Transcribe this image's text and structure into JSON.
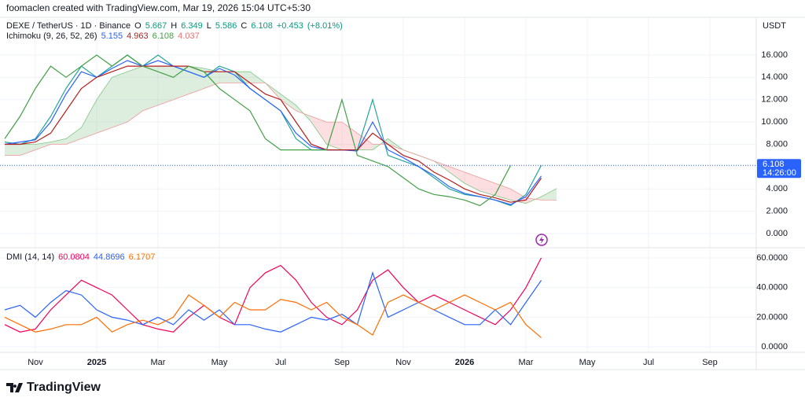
{
  "header": {
    "credit": "foomaclen created with TradingView.com, Mar 19, 2026 15:04 UTC+5:30",
    "currency": "USDT"
  },
  "footer": {
    "brand": "TradingView"
  },
  "chart_data": [
    {
      "type": "line",
      "symbol": "DEXE / TetherUS · 1D · Binance",
      "indicator": "Ichimoku (9, 26, 52, 26)",
      "ohlc_labels": [
        "O",
        "H",
        "L",
        "C"
      ],
      "ohlc": [
        5.667,
        6.349,
        5.586,
        6.108
      ],
      "change": [
        {
          "value": 0.453,
          "label": "+0.453"
        },
        {
          "value": 8.01,
          "label": "(+8.01%)"
        }
      ],
      "countdown": "14:26:00",
      "categories": [
        null,
        null,
        "Nov",
        null,
        null,
        null,
        "2025",
        null,
        null,
        null,
        "Mar",
        null,
        null,
        null,
        "May",
        null,
        null,
        null,
        "Jul",
        null,
        null,
        null,
        "Sep",
        null,
        null,
        null,
        "Nov",
        null,
        null,
        null,
        "2026",
        null,
        null,
        null,
        "Mar",
        null,
        null,
        null,
        "May",
        null,
        null,
        null,
        "Jul",
        null,
        null,
        null,
        "Sep",
        null,
        null,
        null
      ],
      "ylim": [
        -1.06,
        19.38
      ],
      "yticks": [
        {
          "value": 0,
          "label": "0.000"
        },
        {
          "value": 2,
          "label": "2.000"
        },
        {
          "value": 4,
          "label": "4.000"
        },
        {
          "value": 6,
          "label": "6.000"
        },
        {
          "value": 8,
          "label": "8.000"
        },
        {
          "value": 10,
          "label": "10.000"
        },
        {
          "value": 12,
          "label": "12.000"
        },
        {
          "value": 14,
          "label": "14.000"
        },
        {
          "value": 16,
          "label": "16.000"
        }
      ],
      "series": [
        {
          "color": "#26a69a",
          "values": [
            8.2,
            8,
            8.5,
            10.5,
            13,
            15,
            14,
            15,
            16,
            15,
            16,
            15,
            14.5,
            14,
            15,
            14.5,
            13,
            12,
            11,
            8.5,
            7.5,
            7.5,
            7.5,
            7.5,
            12,
            7,
            6.5,
            6,
            5,
            4,
            3.5,
            3.3,
            3,
            2.5,
            3.5,
            6.108,
            null,
            null,
            null,
            null,
            null,
            null,
            null,
            null,
            null,
            null,
            null,
            null,
            null,
            null
          ]
        },
        {
          "color": "#2962ff",
          "values": [
            8,
            8.2,
            8.4,
            10,
            12.5,
            14.5,
            14,
            14.8,
            15.5,
            15,
            15.5,
            15,
            14.5,
            14,
            14.8,
            14.2,
            13,
            12,
            11,
            9,
            7.8,
            7.5,
            7.5,
            7.4,
            10,
            7.5,
            6.8,
            6,
            5.2,
            4.2,
            3.6,
            3.3,
            3,
            2.6,
            3.3,
            5.155,
            null,
            null,
            null,
            null,
            null,
            null,
            null,
            null,
            null,
            null,
            null,
            null,
            null,
            null
          ]
        },
        {
          "color": "#b71c1c",
          "values": [
            8,
            8,
            8.2,
            9,
            11,
            13,
            14,
            14.5,
            15,
            15,
            15,
            15,
            15,
            14.5,
            14.5,
            14.5,
            13.5,
            12.5,
            12,
            10,
            8,
            7.5,
            7.5,
            7.5,
            9,
            8,
            7,
            6.5,
            5.5,
            4.8,
            4,
            3.5,
            3.2,
            2.8,
            3,
            4.963,
            null,
            null,
            null,
            null,
            null,
            null,
            null,
            null,
            null,
            null,
            null,
            null,
            null,
            null
          ]
        },
        {
          "color": "#43a047",
          "values": [
            8.5,
            10.5,
            13,
            15,
            14,
            15,
            16,
            15,
            16,
            15,
            14.5,
            14,
            15,
            14.5,
            13,
            12,
            11,
            8.5,
            7.5,
            7.5,
            7.5,
            7.5,
            12,
            7,
            6.5,
            6,
            5,
            4,
            3.5,
            3.3,
            3,
            2.5,
            3.5,
            6.108,
            null,
            null,
            null,
            null,
            null,
            null,
            null,
            null,
            null,
            null,
            null,
            null,
            null,
            null,
            null,
            null
          ]
        }
      ],
      "cloud": {
        "up_color": "rgba(67,160,71,0.18)",
        "down_color": "rgba(242,54,69,0.16)",
        "series": [
          {
            "color": "#81c784",
            "values": [
              8,
              8,
              8,
              8.2,
              8.5,
              9.5,
              12,
              14,
              14.5,
              15,
              15,
              15,
              15,
              14.8,
              14.5,
              14.5,
              14.5,
              13.5,
              12.5,
              11.5,
              10,
              8,
              7.5,
              7.5,
              7.5,
              8.5,
              7.5,
              7,
              6.5,
              5.5,
              4.5,
              3.8,
              3.4,
              3,
              2.7,
              3.3,
              4.037,
              null,
              null,
              null,
              null,
              null,
              null,
              null,
              null,
              null,
              null,
              null,
              null,
              null
            ]
          },
          {
            "color": "#ef9a9a",
            "values": [
              7,
              7,
              7.5,
              8,
              8,
              8.5,
              9,
              9.5,
              10,
              11,
              11.5,
              12,
              12.5,
              13,
              13.5,
              13.5,
              13.5,
              13.5,
              12,
              11,
              10.5,
              10,
              10,
              9,
              8,
              8,
              7.5,
              7,
              6.5,
              6,
              5.5,
              5,
              4.5,
              4,
              3.2,
              3,
              3,
              null,
              null,
              null,
              null,
              null,
              null,
              null,
              null,
              null,
              null,
              null,
              null,
              null
            ]
          }
        ]
      }
    },
    {
      "type": "line",
      "title": "DMI (14, 14)",
      "ylim": [
        -3.7,
        66.4
      ],
      "yticks": [
        {
          "value": 0,
          "label": "0.0000"
        },
        {
          "value": 20,
          "label": "20.0000"
        },
        {
          "value": 40,
          "label": "40.0000"
        },
        {
          "value": 60,
          "label": "60.0000"
        }
      ],
      "series": [
        {
          "color": "#f50057",
          "values": [
            15,
            10,
            12,
            25,
            35,
            45,
            40,
            35,
            25,
            15,
            12,
            10,
            20,
            28,
            20,
            15,
            40,
            50,
            55,
            45,
            30,
            20,
            15,
            25,
            45,
            52,
            40,
            30,
            35,
            30,
            25,
            20,
            15,
            25,
            40,
            60.0804,
            null,
            null,
            null,
            null,
            null,
            null,
            null,
            null,
            null,
            null,
            null,
            null,
            null,
            null
          ]
        },
        {
          "color": "#2962ff",
          "values": [
            25,
            28,
            20,
            30,
            38,
            35,
            25,
            20,
            18,
            15,
            20,
            15,
            25,
            18,
            25,
            15,
            15,
            12,
            10,
            15,
            20,
            18,
            22,
            15,
            50,
            20,
            25,
            30,
            25,
            20,
            15,
            15,
            25,
            15,
            30,
            44.8696,
            null,
            null,
            null,
            null,
            null,
            null,
            null,
            null,
            null,
            null,
            null,
            null,
            null,
            null
          ]
        },
        {
          "color": "#ff6d00",
          "values": [
            20,
            15,
            10,
            12,
            15,
            15,
            20,
            10,
            15,
            18,
            15,
            20,
            35,
            28,
            20,
            30,
            25,
            25,
            32,
            30,
            25,
            30,
            20,
            15,
            8,
            30,
            35,
            30,
            25,
            30,
            35,
            30,
            25,
            30,
            15,
            6.1707,
            null,
            null,
            null,
            null,
            null,
            null,
            null,
            null,
            null,
            null,
            null,
            null,
            null,
            null
          ]
        }
      ]
    }
  ]
}
